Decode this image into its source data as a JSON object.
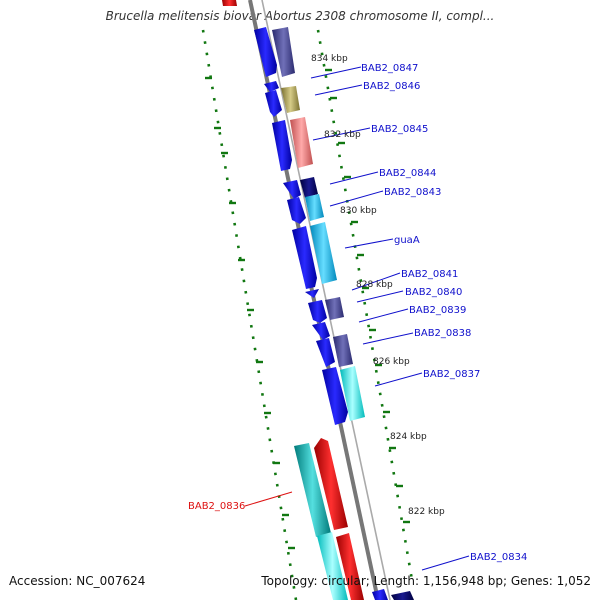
{
  "title": "Brucella melitensis biovar Abortus 2308 chromosome II, compl...",
  "footer": {
    "accession": "Accession: NC_007624",
    "topology": "Topology: circular; Length: 1,156,948 bp; Genes: 1,052"
  },
  "colors": {
    "cds_forward": "#0000ee",
    "label": "#1010cc",
    "selected": "#dd1111",
    "ruler": "#777777",
    "tick": "#117711"
  },
  "kbp_labels": [
    "834 kbp",
    "832 kbp",
    "830 kbp",
    "828 kbp",
    "826 kbp",
    "824 kbp",
    "822 kbp"
  ],
  "genes": [
    {
      "id": "gene-bab2-0847",
      "label": "BAB2_0847",
      "color": "blue"
    },
    {
      "id": "gene-bab2-0846",
      "label": "BAB2_0846",
      "color": "blue"
    },
    {
      "id": "gene-bab2-0845",
      "label": "BAB2_0845",
      "color": "blue"
    },
    {
      "id": "gene-bab2-0844",
      "label": "BAB2_0844",
      "color": "blue"
    },
    {
      "id": "gene-bab2-0843",
      "label": "BAB2_0843",
      "color": "blue"
    },
    {
      "id": "gene-guaa",
      "label": "guaA",
      "color": "blue"
    },
    {
      "id": "gene-bab2-0841",
      "label": "BAB2_0841",
      "color": "blue"
    },
    {
      "id": "gene-bab2-0840",
      "label": "BAB2_0840",
      "color": "blue"
    },
    {
      "id": "gene-bab2-0839",
      "label": "BAB2_0839",
      "color": "blue"
    },
    {
      "id": "gene-bab2-0838",
      "label": "BAB2_0838",
      "color": "blue"
    },
    {
      "id": "gene-bab2-0837",
      "label": "BAB2_0837",
      "color": "blue"
    },
    {
      "id": "gene-bab2-0836",
      "label": "BAB2_0836",
      "color": "red"
    },
    {
      "id": "gene-bab2-0834",
      "label": "BAB2_0834",
      "color": "blue"
    }
  ]
}
